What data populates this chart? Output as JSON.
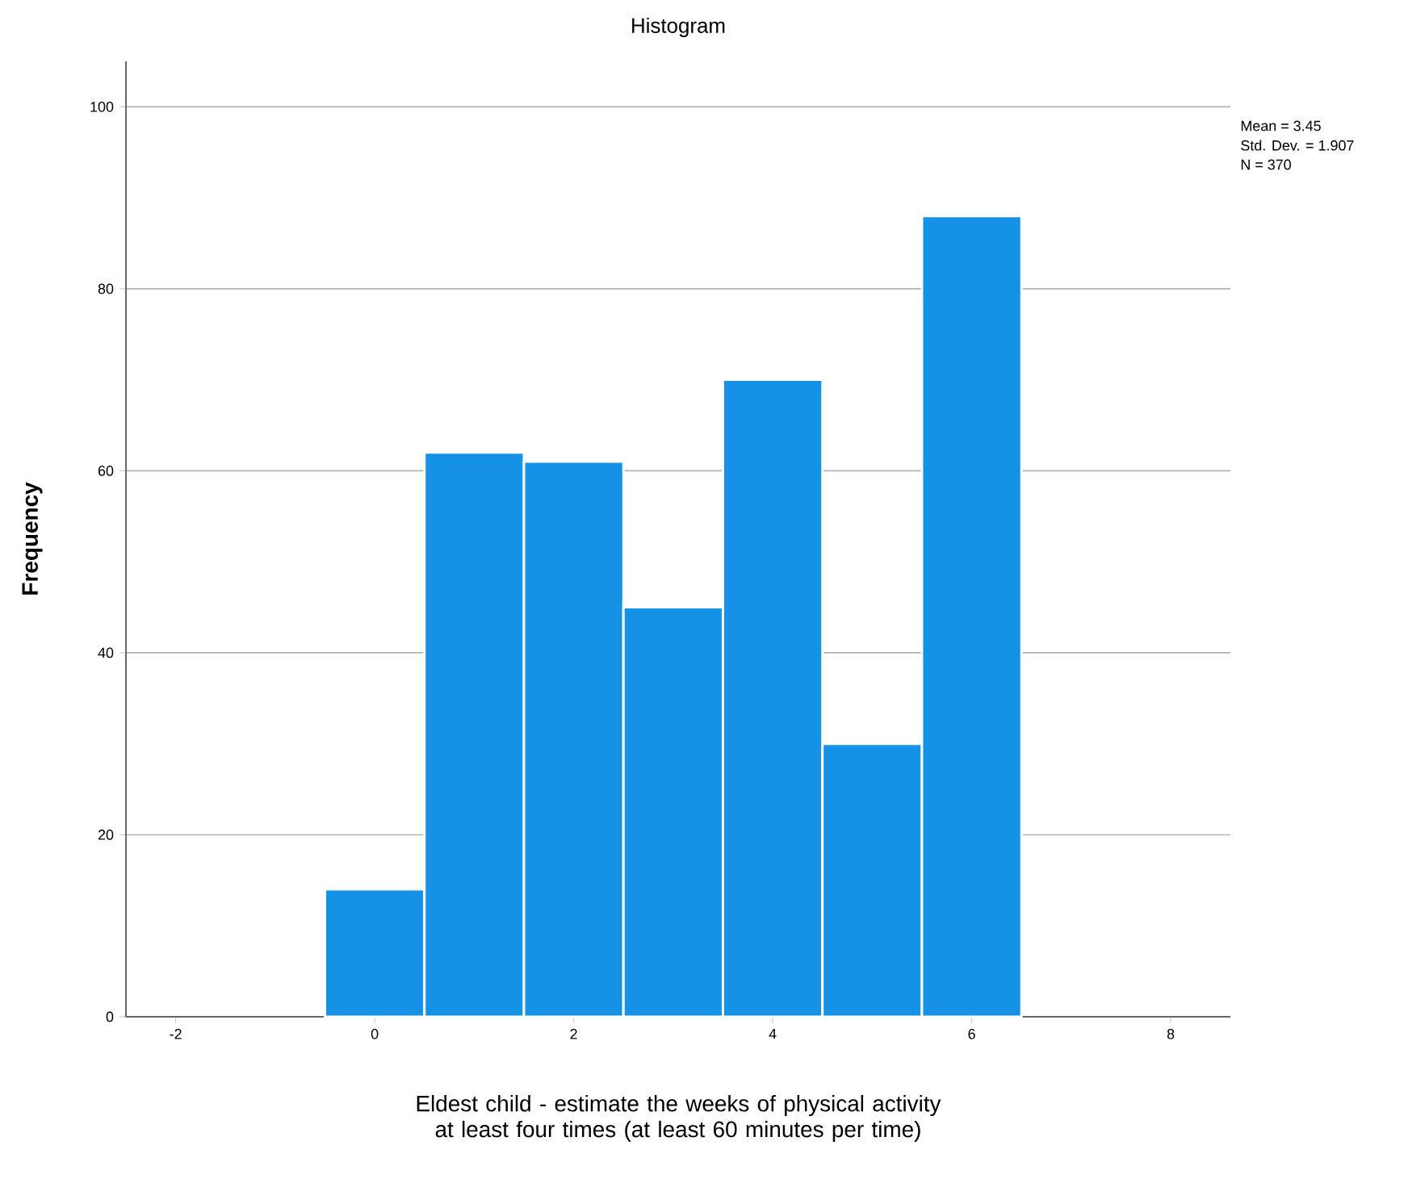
{
  "chart_data": {
    "type": "histogram",
    "title": "Histogram",
    "xlabel": "Eldest child - estimate the weeks of physical activity at least four times (at least 60 minutes per time)",
    "ylabel": "Frequency",
    "bins": [
      -0.5,
      0.5,
      1.5,
      2.5,
      3.5,
      4.5,
      5.5,
      6.5
    ],
    "values": [
      14,
      62,
      61,
      45,
      70,
      30,
      88
    ],
    "color": "#1591e6",
    "xlim": [
      -2.5,
      8.6
    ],
    "ylim": [
      0,
      105
    ],
    "xticks": [
      -2,
      0,
      2,
      4,
      6,
      8
    ],
    "yticks": [
      0,
      20,
      40,
      60,
      80,
      100
    ],
    "grid": "y",
    "annotations": [
      "Mean = 3.45",
      "Std. Dev. = 1.907",
      "N = 370"
    ]
  }
}
